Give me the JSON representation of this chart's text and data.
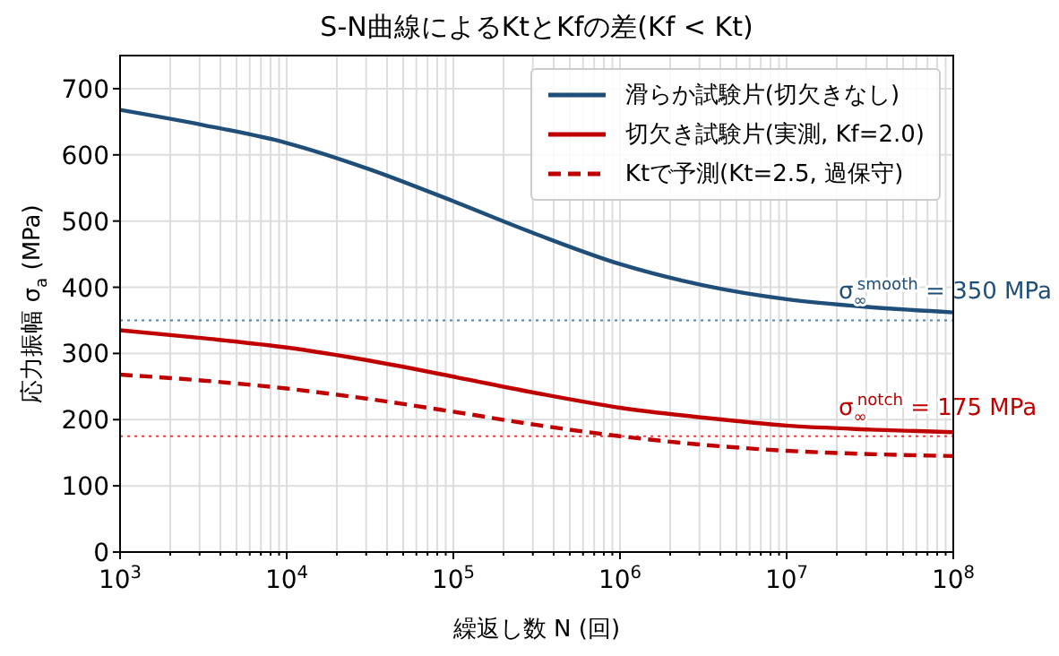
{
  "chart_data": {
    "type": "line",
    "title": "S-N曲線によるKtとKfの差(Kf < Kt)",
    "xlabel": "繰返し数 N (回)",
    "ylabel": "応力振幅 σ$_{a}$ (MPa)",
    "x": [
      1000,
      3162,
      10000,
      31623,
      100000,
      316228,
      1000000,
      3162278,
      10000000,
      31622777,
      100000000
    ],
    "series": [
      {
        "name": "滑らか試験片(切欠きなし)",
        "color": "#1f4e79",
        "values": [
          668,
          645,
          618,
          578,
          530,
          480,
          435,
          403,
          382,
          370,
          362
        ]
      },
      {
        "name": "切欠き試験片(実測, Kf=2.0)",
        "color": "#c00000",
        "values": [
          335,
          323,
          309,
          289,
          265,
          240,
          218,
          203,
          191,
          185,
          181
        ]
      },
      {
        "name": "Ktで予測(Kt=2.5, 過保守)",
        "color": "#c00000",
        "line_style": "dashed",
        "values": [
          268,
          259,
          247,
          231,
          212,
          192,
          175,
          162,
          153,
          148,
          145
        ]
      }
    ],
    "log": "x",
    "xlim": [
      1000,
      100000000
    ],
    "xticks": [
      {
        "value": 1000,
        "label": "10$^{3}$"
      },
      {
        "value": 2000,
        "label": null
      },
      {
        "value": 3000,
        "label": null
      },
      {
        "value": 4000,
        "label": null
      },
      {
        "value": 5000,
        "label": null
      },
      {
        "value": 6000,
        "label": null
      },
      {
        "value": 7000,
        "label": null
      },
      {
        "value": 8000,
        "label": null
      },
      {
        "value": 9000,
        "label": null
      },
      {
        "value": 10000,
        "label": "10$^{4}$"
      },
      {
        "value": 20000,
        "label": null
      },
      {
        "value": 30000,
        "label": null
      },
      {
        "value": 40000,
        "label": null
      },
      {
        "value": 50000,
        "label": null
      },
      {
        "value": 60000,
        "label": null
      },
      {
        "value": 70000,
        "label": null
      },
      {
        "value": 80000,
        "label": null
      },
      {
        "value": 90000,
        "label": null
      },
      {
        "value": 100000,
        "label": "10$^{5}$"
      },
      {
        "value": 200000,
        "label": null
      },
      {
        "value": 300000,
        "label": null
      },
      {
        "value": 400000,
        "label": null
      },
      {
        "value": 500000,
        "label": null
      },
      {
        "value": 600000,
        "label": null
      },
      {
        "value": 700000,
        "label": null
      },
      {
        "value": 800000,
        "label": null
      },
      {
        "value": 900000,
        "label": null
      },
      {
        "value": 1000000,
        "label": "10$^{6}$"
      },
      {
        "value": 2000000,
        "label": null
      },
      {
        "value": 3000000,
        "label": null
      },
      {
        "value": 4000000,
        "label": null
      },
      {
        "value": 5000000,
        "label": null
      },
      {
        "value": 6000000,
        "label": null
      },
      {
        "value": 7000000,
        "label": null
      },
      {
        "value": 8000000,
        "label": null
      },
      {
        "value": 9000000,
        "label": null
      },
      {
        "value": 10000000,
        "label": "10$^{7}$"
      },
      {
        "value": 20000000,
        "label": null
      },
      {
        "value": 30000000,
        "label": null
      },
      {
        "value": 40000000,
        "label": null
      },
      {
        "value": 50000000,
        "label": null
      },
      {
        "value": 60000000,
        "label": null
      },
      {
        "value": 70000000,
        "label": null
      },
      {
        "value": 80000000,
        "label": null
      },
      {
        "value": 90000000,
        "label": null
      },
      {
        "value": 100000000,
        "label": "10$^{8}$"
      }
    ],
    "ylim": [
      0,
      750
    ],
    "yticks": [
      0,
      100,
      200,
      300,
      400,
      500,
      600,
      700
    ],
    "ref_lines": [
      {
        "axis": "y",
        "value": 350,
        "label": "σ$_{∞}$$^{smooth}$ = 350 MPa",
        "color": "#1f4e79",
        "line_style": "dotted"
      },
      {
        "axis": "y",
        "value": 175,
        "label": "σ$_{∞}$$^{notch}$ = 175 MPa",
        "color": "#c00000",
        "line_style": "dotted"
      }
    ],
    "grid": true,
    "legend": "top right",
    "marker": "none",
    "line_style": "solid"
  }
}
